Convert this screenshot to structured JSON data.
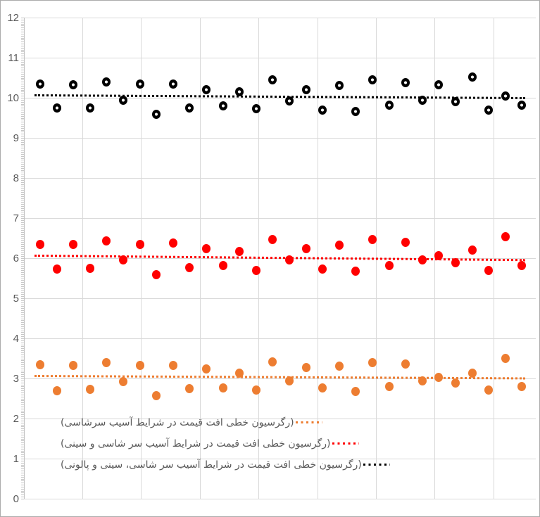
{
  "chart_data": {
    "type": "scatter",
    "title": "",
    "xlabel": "",
    "ylabel": "",
    "ylim": [
      0,
      12
    ],
    "yticks": [
      "0",
      "1",
      "2",
      "3",
      "4",
      "5",
      "6",
      "7",
      "8",
      "9",
      "10",
      "11",
      "12"
    ],
    "y_minor_tick_step": 0.05,
    "grid": "both",
    "legend_position": "inside-bottom-left",
    "x": [
      1,
      2,
      3,
      4,
      5,
      6,
      7,
      8,
      9,
      10,
      11,
      12,
      13,
      14,
      15,
      16,
      17,
      18,
      19,
      20,
      21,
      22,
      23,
      24,
      25,
      26,
      27,
      28,
      29,
      30
    ],
    "series": [
      {
        "name": "(رگرسیون خطی افت قیمت در شرایط آسیب سرشاسی)",
        "color": "#ED7D31",
        "marker": "solid",
        "values": [
          3.34,
          2.7,
          3.33,
          2.72,
          3.4,
          2.92,
          3.33,
          2.57,
          3.33,
          2.74,
          3.24,
          2.77,
          3.13,
          2.71,
          3.42,
          2.93,
          3.27,
          2.77,
          3.3,
          2.68,
          3.4,
          2.79,
          3.36,
          2.93,
          3.02,
          2.88,
          3.14,
          2.71,
          3.5,
          2.79
        ],
        "trendline": {
          "type": "linear",
          "style": "dotted",
          "start_value": 3.06,
          "end_value": 3.0
        }
      },
      {
        "name": "(رگرسیون خطی افت قیمت در شرایط آسیب سر شاسی و سینی)",
        "color": "#FF0000",
        "marker": "solid",
        "values": [
          6.35,
          5.72,
          6.34,
          5.74,
          6.43,
          5.95,
          6.34,
          5.58,
          6.37,
          5.77,
          6.23,
          5.81,
          6.16,
          5.7,
          6.46,
          5.95,
          6.23,
          5.72,
          6.32,
          5.67,
          6.46,
          5.81,
          6.39,
          5.96,
          6.07,
          5.88,
          6.21,
          5.7,
          6.53,
          5.81
        ],
        "trendline": {
          "type": "linear",
          "style": "dotted",
          "start_value": 6.06,
          "end_value": 5.95
        }
      },
      {
        "name": "(رگرسیون خطی افت قیمت در شرایط آسیب سر شاسی، سینی و پالونی)",
        "color": "#000000",
        "marker": "ring",
        "values": [
          10.35,
          9.74,
          10.33,
          9.74,
          10.4,
          9.93,
          10.35,
          9.58,
          10.35,
          9.75,
          10.21,
          9.79,
          10.15,
          9.72,
          10.44,
          9.92,
          10.21,
          9.7,
          10.3,
          9.65,
          10.44,
          9.81,
          10.37,
          9.93,
          10.33,
          9.9,
          10.52,
          9.7,
          10.05,
          9.82
        ],
        "trendline": {
          "type": "linear",
          "style": "dotted",
          "start_value": 10.07,
          "end_value": 10.0
        }
      }
    ]
  },
  "colors": {
    "gridline": "#D9D9D9",
    "axis_line": "#BFBFBF",
    "tick_label": "#595959",
    "legend_text": "#595959",
    "border": "#ABABAB"
  }
}
